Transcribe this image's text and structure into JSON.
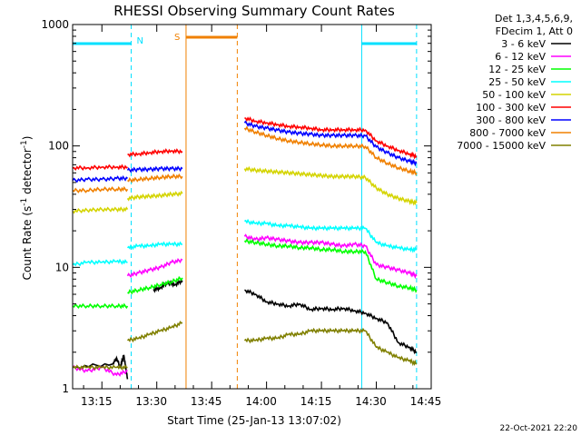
{
  "chart_data": {
    "type": "line",
    "title": "RHESSI Observing Summary Count Rates",
    "xlabel": "Start Time (25-Jan-13 13:07:02)",
    "ylabel_parts": [
      "Count Rate (s",
      "-1",
      " detector",
      "-1",
      ")"
    ],
    "yscale": "log",
    "xlim_minutes": [
      0,
      98
    ],
    "ylim": [
      1,
      1000
    ],
    "x_ticks": [
      {
        "minute": 8,
        "label": "13:15"
      },
      {
        "minute": 23,
        "label": "13:30"
      },
      {
        "minute": 38,
        "label": "13:45"
      },
      {
        "minute": 53,
        "label": "14:00"
      },
      {
        "minute": 68,
        "label": "14:15"
      },
      {
        "minute": 83,
        "label": "14:30"
      },
      {
        "minute": 98,
        "label": "14:45"
      }
    ],
    "y_ticks": [
      {
        "value": 1,
        "label": "1"
      },
      {
        "value": 10,
        "label": "10"
      },
      {
        "value": 100,
        "label": "100"
      },
      {
        "value": 1000,
        "label": "1000"
      }
    ],
    "legend_header": [
      "Det 1,3,4,5,6,9,",
      "FDecim 1, Att 0"
    ],
    "flags": [
      {
        "label": "N",
        "color": "#00e0ff",
        "start": 0,
        "end": 16
      },
      {
        "label": "S",
        "color": "#f08000",
        "start": 31,
        "end": 45
      },
      {
        "label": "",
        "color": "#00e0ff",
        "start": 79,
        "end": 94
      }
    ],
    "vertical_markers": [
      {
        "minute": 16,
        "color": "#00e0ff",
        "style": "dashed"
      },
      {
        "minute": 31,
        "color": "#f08000",
        "style": "solid"
      },
      {
        "minute": 45,
        "color": "#f08000",
        "style": "dashed"
      },
      {
        "minute": 79,
        "color": "#00e0ff",
        "style": "solid"
      },
      {
        "minute": 94,
        "color": "#00e0ff",
        "style": "dashed"
      }
    ],
    "series": [
      {
        "name": "3 - 6 keV",
        "color": "#000000",
        "segments": [
          {
            "x": [
              0,
              11,
              12,
              13,
              14,
              15
            ],
            "y": [
              1.5,
              1.6,
              1.8,
              1.5,
              1.9,
              1.2
            ]
          },
          {
            "x": [
              22,
              24,
              26,
              28,
              30
            ],
            "y": [
              6.5,
              6.8,
              7.5,
              7.2,
              7.8
            ]
          },
          {
            "x": [
              47,
              50,
              53,
              56,
              59,
              62,
              65,
              68,
              71,
              74,
              77,
              80,
              83,
              86,
              89,
              92,
              94
            ],
            "y": [
              6.5,
              6.0,
              5.2,
              5.0,
              4.8,
              5.0,
              4.5,
              4.6,
              4.5,
              4.6,
              4.4,
              4.2,
              3.8,
              3.5,
              2.4,
              2.2,
              2.0
            ]
          }
        ]
      },
      {
        "name": "6 - 12 keV",
        "color": "#ff00ff",
        "segments": [
          {
            "x": [
              0,
              4,
              8,
              12,
              15
            ],
            "y": [
              1.5,
              1.4,
              1.5,
              1.3,
              1.4
            ]
          },
          {
            "x": [
              15,
              18,
              21,
              24,
              27,
              30
            ],
            "y": [
              8.5,
              9.0,
              9.5,
              10.0,
              11.0,
              11.5
            ]
          },
          {
            "x": [
              47,
              50,
              53,
              56,
              59,
              62,
              65,
              68,
              71,
              74,
              77,
              80,
              83,
              86,
              89,
              92,
              94
            ],
            "y": [
              18.0,
              17.0,
              17.5,
              17.0,
              16.5,
              16.0,
              16.0,
              16.0,
              15.5,
              15.0,
              15.5,
              15.0,
              10.5,
              10.0,
              9.5,
              9.0,
              8.5
            ]
          }
        ]
      },
      {
        "name": "12 - 25 keV",
        "color": "#00ff00",
        "segments": [
          {
            "x": [
              0,
              4,
              8,
              12,
              15
            ],
            "y": [
              4.8,
              4.8,
              4.8,
              4.8,
              4.8
            ]
          },
          {
            "x": [
              15,
              18,
              21,
              24,
              27,
              30
            ],
            "y": [
              6.2,
              6.5,
              6.8,
              7.2,
              7.6,
              8.2
            ]
          },
          {
            "x": [
              47,
              50,
              53,
              56,
              59,
              62,
              65,
              68,
              71,
              74,
              77,
              80,
              83,
              86,
              89,
              92,
              94
            ],
            "y": [
              16.5,
              16.0,
              15.5,
              15.0,
              15.0,
              14.5,
              14.5,
              14.0,
              14.0,
              13.5,
              13.5,
              13.5,
              8.0,
              7.5,
              7.0,
              6.8,
              6.5
            ]
          }
        ]
      },
      {
        "name": "25 - 50 keV",
        "color": "#00ffff",
        "segments": [
          {
            "x": [
              0,
              4,
              8,
              12,
              15
            ],
            "y": [
              10.5,
              11.0,
              11.0,
              11.2,
              11.0
            ]
          },
          {
            "x": [
              15,
              18,
              21,
              24,
              27,
              30
            ],
            "y": [
              14.5,
              15.0,
              15.0,
              15.5,
              15.5,
              15.5
            ]
          },
          {
            "x": [
              47,
              50,
              53,
              56,
              59,
              62,
              65,
              68,
              71,
              74,
              77,
              80,
              83,
              86,
              89,
              92,
              94
            ],
            "y": [
              24.0,
              23.0,
              23.0,
              22.0,
              22.0,
              21.5,
              21.0,
              21.0,
              21.0,
              21.0,
              21.0,
              21.0,
              16.0,
              15.0,
              14.5,
              14.0,
              14.0
            ]
          }
        ]
      },
      {
        "name": "50 - 100 keV",
        "color": "#d4d400",
        "segments": [
          {
            "x": [
              0,
              4,
              8,
              12,
              15
            ],
            "y": [
              29.0,
              29.5,
              30.0,
              30.0,
              30.0
            ]
          },
          {
            "x": [
              15,
              18,
              21,
              24,
              27,
              30
            ],
            "y": [
              37.0,
              38.0,
              38.5,
              39.0,
              40.0,
              40.5
            ]
          },
          {
            "x": [
              47,
              50,
              53,
              56,
              59,
              62,
              65,
              68,
              71,
              74,
              77,
              80,
              83,
              86,
              89,
              92,
              94
            ],
            "y": [
              65.0,
              63.0,
              62.0,
              61.0,
              60.0,
              59.0,
              58.0,
              57.0,
              56.0,
              56.0,
              56.0,
              55.0,
              45.0,
              40.0,
              37.0,
              35.0,
              34.0
            ]
          }
        ]
      },
      {
        "name": "100 - 300 keV",
        "color": "#ff0000",
        "segments": [
          {
            "x": [
              0,
              4,
              8,
              12,
              15
            ],
            "y": [
              66.0,
              66.0,
              67.0,
              67.0,
              67.0
            ]
          },
          {
            "x": [
              15,
              18,
              21,
              24,
              27,
              30
            ],
            "y": [
              85.0,
              86.0,
              88.0,
              90.0,
              91.0,
              90.0
            ]
          },
          {
            "x": [
              47,
              50,
              53,
              56,
              59,
              62,
              65,
              68,
              71,
              74,
              77,
              80,
              83,
              86,
              89,
              92,
              94
            ],
            "y": [
              170.0,
              160.0,
              155.0,
              150.0,
              145.0,
              143.0,
              140.0,
              136.0,
              136.0,
              136.0,
              136.0,
              135.0,
              110.0,
              100.0,
              92.0,
              86.0,
              82.0
            ]
          }
        ]
      },
      {
        "name": "300 - 800 keV",
        "color": "#0000ff",
        "segments": [
          {
            "x": [
              0,
              4,
              8,
              12,
              15
            ],
            "y": [
              52.0,
              53.0,
              53.0,
              54.0,
              54.0
            ]
          },
          {
            "x": [
              15,
              18,
              21,
              24,
              27,
              30
            ],
            "y": [
              63.0,
              64.0,
              64.0,
              65.0,
              65.0,
              65.0
            ]
          },
          {
            "x": [
              47,
              50,
              53,
              56,
              59,
              62,
              65,
              68,
              71,
              74,
              77,
              80,
              83,
              86,
              89,
              92,
              94
            ],
            "y": [
              155.0,
              145.0,
              140.0,
              135.0,
              130.0,
              127.0,
              125.0,
              122.0,
              122.0,
              122.0,
              122.0,
              121.0,
              98.0,
              88.0,
              80.0,
              75.0,
              72.0
            ]
          }
        ]
      },
      {
        "name": "800 - 7000 keV",
        "color": "#f08000",
        "segments": [
          {
            "x": [
              0,
              4,
              8,
              12,
              15
            ],
            "y": [
              43.0,
              43.0,
              44.0,
              44.0,
              44.0
            ]
          },
          {
            "x": [
              15,
              18,
              21,
              24,
              27,
              30
            ],
            "y": [
              52.0,
              53.0,
              54.0,
              55.0,
              56.0,
              56.0
            ]
          },
          {
            "x": [
              47,
              50,
              53,
              56,
              59,
              62,
              65,
              68,
              71,
              74,
              77,
              80,
              83,
              86,
              89,
              92,
              94
            ],
            "y": [
              140.0,
              130.0,
              122.0,
              115.0,
              110.0,
              107.0,
              104.0,
              102.0,
              100.0,
              100.0,
              100.0,
              99.0,
              80.0,
              72.0,
              66.0,
              62.0,
              60.0
            ]
          }
        ]
      },
      {
        "name": "7000 - 15000 keV",
        "color": "#808000",
        "segments": [
          {
            "x": [
              0,
              4,
              8,
              12,
              15
            ],
            "y": [
              1.5,
              1.5,
              1.5,
              1.5,
              1.5
            ]
          },
          {
            "x": [
              15,
              18,
              21,
              24,
              27,
              30
            ],
            "y": [
              2.5,
              2.6,
              2.8,
              3.0,
              3.2,
              3.5
            ]
          },
          {
            "x": [
              47,
              50,
              53,
              56,
              59,
              62,
              65,
              68,
              71,
              74,
              77,
              80,
              83,
              86,
              89,
              92,
              94
            ],
            "y": [
              2.5,
              2.5,
              2.6,
              2.6,
              2.8,
              2.8,
              3.0,
              3.0,
              3.0,
              3.0,
              3.0,
              3.0,
              2.2,
              2.0,
              1.8,
              1.7,
              1.6
            ]
          }
        ]
      }
    ]
  },
  "footer": {
    "timestamp": "22-Oct-2021 22:20"
  }
}
